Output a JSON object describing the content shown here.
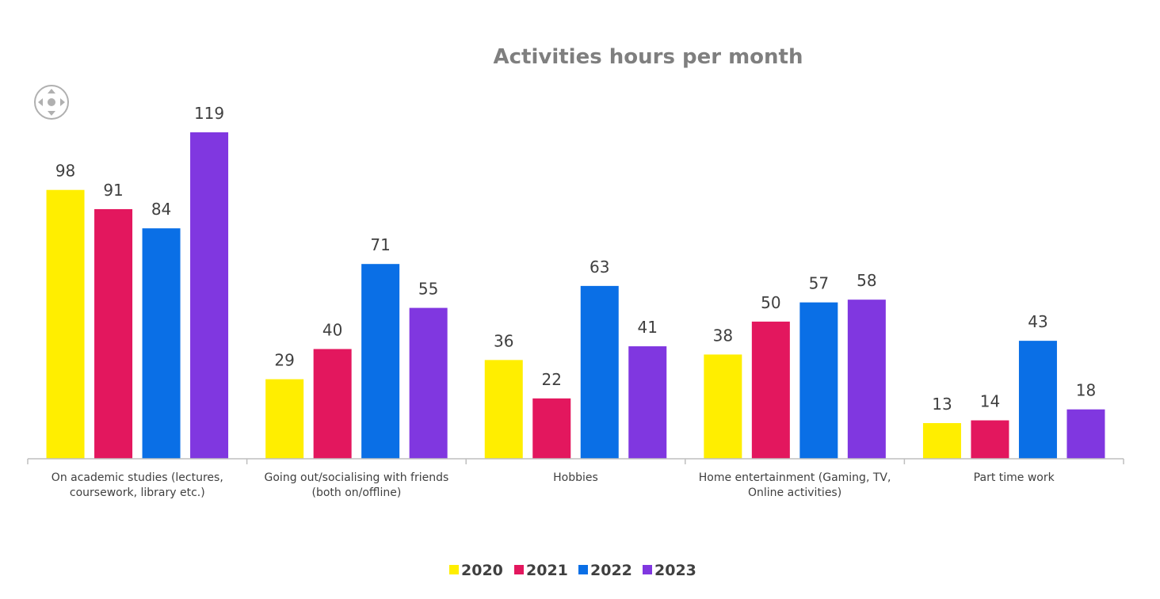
{
  "chart_data": {
    "type": "bar",
    "title": "Activities hours per month",
    "categories": [
      [
        "On academic studies (lectures,",
        "coursework, library etc.)"
      ],
      [
        "Going out/socialising with friends",
        "(both on/offline)"
      ],
      [
        "Hobbies"
      ],
      [
        "Home entertainment (Gaming, TV,",
        "Online activities)"
      ],
      [
        "Part time work"
      ]
    ],
    "series": [
      {
        "name": "2020",
        "color": "#ffee00",
        "values": [
          98,
          29,
          36,
          38,
          13
        ]
      },
      {
        "name": "2021",
        "color": "#e3175e",
        "values": [
          91,
          40,
          22,
          50,
          14
        ]
      },
      {
        "name": "2022",
        "color": "#0a6fe6",
        "values": [
          84,
          71,
          63,
          57,
          43
        ]
      },
      {
        "name": "2023",
        "color": "#8037e0",
        "values": [
          119,
          55,
          41,
          58,
          18
        ]
      }
    ],
    "ylim": [
      0,
      130
    ],
    "legend_position": "bottom",
    "grid": false
  },
  "icons": {
    "move_handle": "move-arrows-icon"
  }
}
